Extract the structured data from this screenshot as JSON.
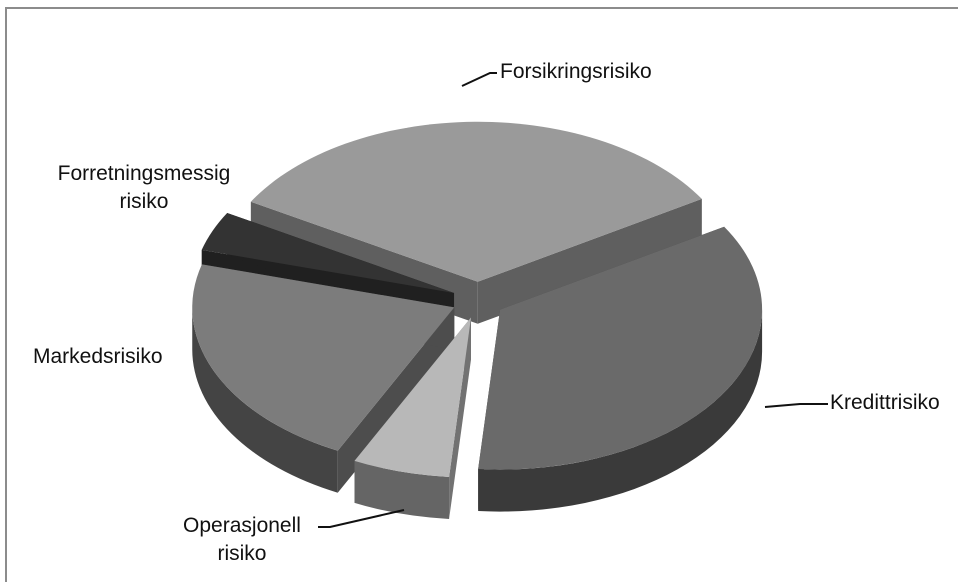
{
  "chart_data": {
    "type": "pie",
    "categories": [
      "Forsikringsrisiko",
      "Kredittrisiko",
      "Operasjonell risiko",
      "Markedsrisiko",
      "Forretningsmessig risiko"
    ],
    "values": [
      33,
      35,
      6,
      22,
      4
    ],
    "colors": [
      "#9a9a9a",
      "#6a6a6a",
      "#b8b8b8",
      "#7c7c7c",
      "#333333"
    ]
  }
}
